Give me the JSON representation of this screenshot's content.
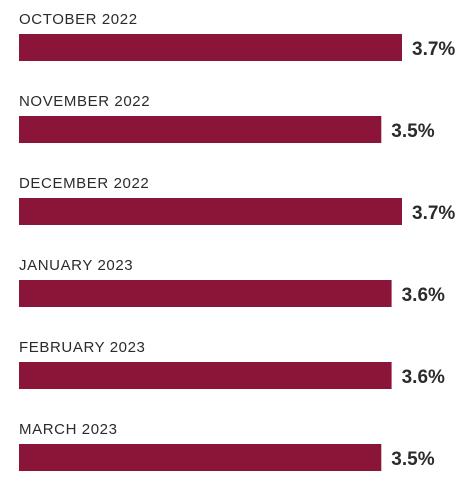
{
  "chart_data": {
    "type": "bar",
    "orientation": "horizontal",
    "categories": [
      "OCTOBER 2022",
      "NOVEMBER 2022",
      "DECEMBER 2022",
      "JANUARY 2023",
      "FEBRUARY 2023",
      "MARCH 2023"
    ],
    "values": [
      3.7,
      3.5,
      3.7,
      3.6,
      3.6,
      3.5
    ],
    "value_labels": [
      "3.7%",
      "3.5%",
      "3.7%",
      "3.6%",
      "3.6%",
      "3.5%"
    ],
    "unit": "%",
    "bar_color": "#8b1538",
    "title": "",
    "xlabel": "",
    "ylabel": "",
    "xlim": [
      0,
      3.7
    ],
    "grid": false,
    "legend": "none"
  }
}
